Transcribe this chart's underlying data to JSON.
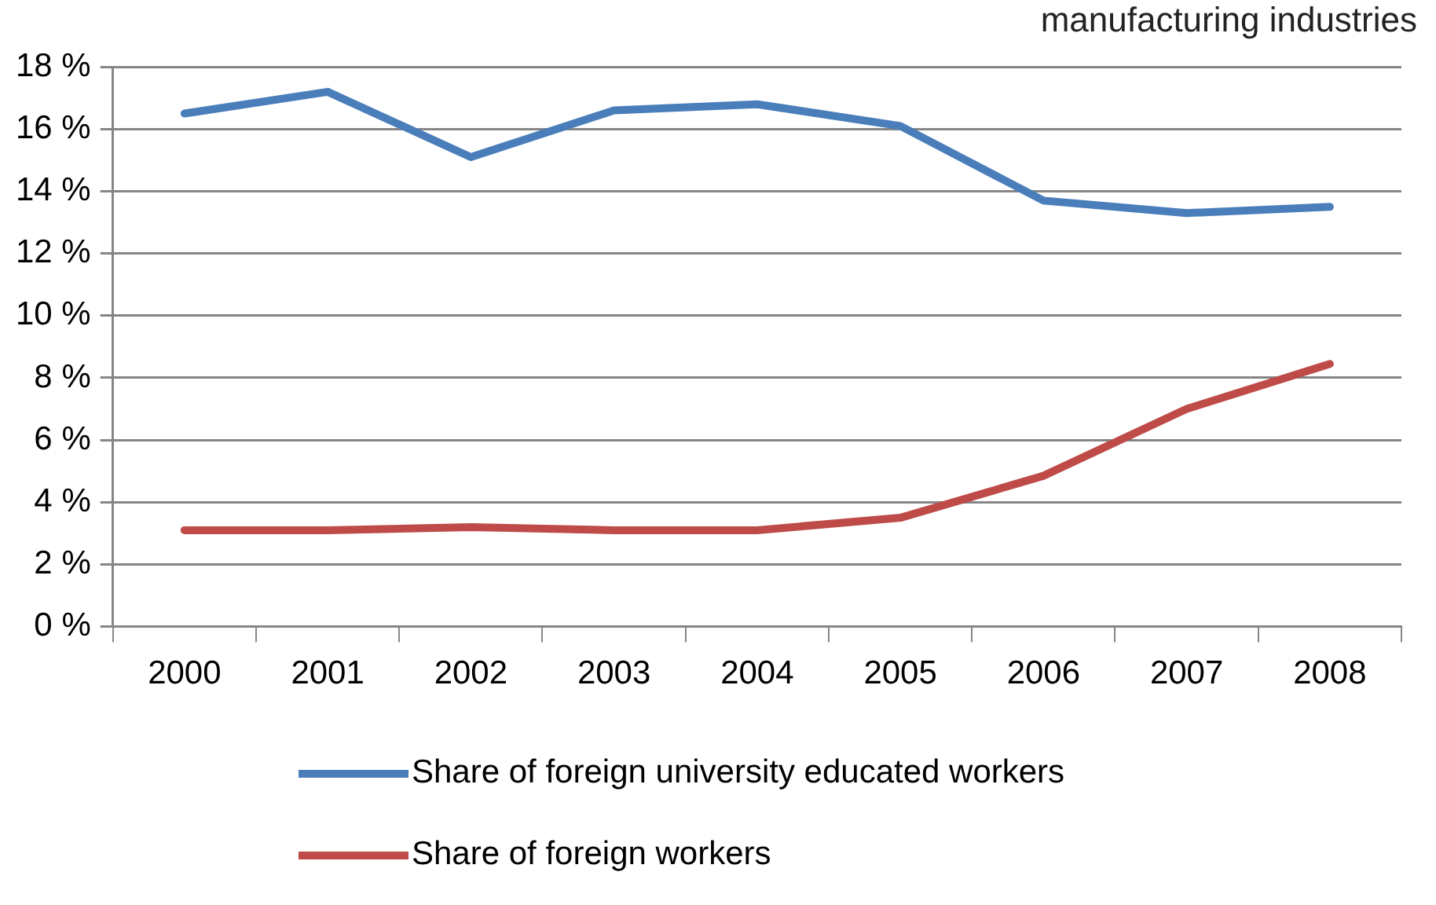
{
  "chart_data": {
    "type": "line",
    "title": "manufacturing industries",
    "categories": [
      "2000",
      "2001",
      "2002",
      "2003",
      "2004",
      "2005",
      "2006",
      "2007",
      "2008"
    ],
    "series": [
      {
        "name": "Share of foreign university educated workers",
        "color": "#4a7ebb",
        "values": [
          16.5,
          17.2,
          15.1,
          16.6,
          16.8,
          16.1,
          13.7,
          13.3,
          13.5
        ]
      },
      {
        "name": "Share of foreign workers",
        "color": "#be4b48",
        "values": [
          3.1,
          3.1,
          3.2,
          3.1,
          3.1,
          3.5,
          4.85,
          7.0,
          8.45
        ]
      }
    ],
    "ylim": [
      0,
      18
    ],
    "yticks": [
      {
        "value": 0,
        "label": "0 %"
      },
      {
        "value": 2,
        "label": "2 %"
      },
      {
        "value": 4,
        "label": "4 %"
      },
      {
        "value": 6,
        "label": "6 %"
      },
      {
        "value": 8,
        "label": "8 %"
      },
      {
        "value": 10,
        "label": "10 %"
      },
      {
        "value": 12,
        "label": "12 %"
      },
      {
        "value": 14,
        "label": "14 %"
      },
      {
        "value": 16,
        "label": "16 %"
      },
      {
        "value": 18,
        "label": "18 %"
      }
    ],
    "grid": "y",
    "legend": "bottom",
    "marker": "none",
    "line_style": "solid"
  }
}
